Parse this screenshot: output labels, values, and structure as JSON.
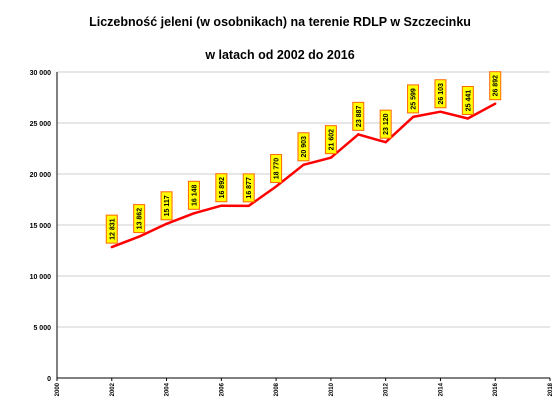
{
  "chart_data": {
    "type": "line",
    "title": "Liczebność jeleni (w osobnikach) na terenie RDLP w Szczecinku",
    "subtitle": "w latach od 2002 do 2016",
    "xlim": [
      2000,
      2018
    ],
    "ylim": [
      0,
      30000
    ],
    "x_ticks": [
      "2000",
      "2002",
      "2004",
      "2006",
      "2008",
      "2010",
      "2012",
      "2014",
      "2016",
      "2018"
    ],
    "y_ticks": [
      "0",
      "5 000",
      "10 000",
      "15 000",
      "20 000",
      "25 000",
      "30 000"
    ],
    "grid": true,
    "x": [
      2002,
      2003,
      2004,
      2005,
      2006,
      2007,
      2008,
      2009,
      2010,
      2011,
      2012,
      2013,
      2014,
      2015,
      2016
    ],
    "values": [
      12831,
      13862,
      15117,
      16148,
      16892,
      16877,
      18770,
      20903,
      21602,
      23887,
      23120,
      25599,
      26103,
      25441,
      26892
    ],
    "data_labels": [
      "12 831",
      "13 862",
      "15 117",
      "16 148",
      "16 892",
      "16 877",
      "18 770",
      "20 903",
      "21 602",
      "23 887",
      "23 120",
      "25 599",
      "26 103",
      "25 441",
      "26 892"
    ],
    "line_color": "#ff0000",
    "label_fill": "#ffff00",
    "label_border": "#ff6600"
  }
}
